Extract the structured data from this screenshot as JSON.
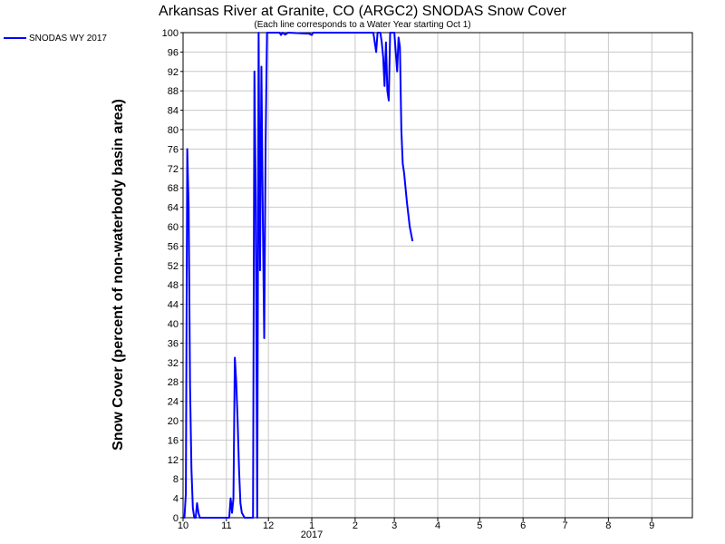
{
  "chart_data": {
    "type": "line",
    "title": "Arkansas River at Granite, CO (ARGC2) SNODAS Snow Cover",
    "subtitle": "(Each line corresponds to a Water Year starting Oct 1)",
    "ylabel": "Snow Cover (percent of non-waterbody basin area)",
    "xlabel": "",
    "ylim": [
      0,
      100
    ],
    "y_ticks": [
      0,
      4,
      8,
      12,
      16,
      20,
      24,
      28,
      32,
      36,
      40,
      44,
      48,
      52,
      56,
      60,
      64,
      68,
      72,
      76,
      80,
      84,
      88,
      92,
      96,
      100
    ],
    "x_range": [
      "2016-10-01",
      "2017-09-30"
    ],
    "x_ticks": [
      {
        "date": "2016-10-01",
        "label": "10"
      },
      {
        "date": "2016-11-01",
        "label": "11"
      },
      {
        "date": "2016-12-01",
        "label": "12"
      },
      {
        "date": "2017-01-01",
        "label": "1"
      },
      {
        "date": "2017-02-01",
        "label": "2"
      },
      {
        "date": "2017-03-01",
        "label": "3"
      },
      {
        "date": "2017-04-01",
        "label": "4"
      },
      {
        "date": "2017-05-01",
        "label": "5"
      },
      {
        "date": "2017-06-01",
        "label": "6"
      },
      {
        "date": "2017-07-01",
        "label": "7"
      },
      {
        "date": "2017-08-01",
        "label": "8"
      },
      {
        "date": "2017-09-01",
        "label": "9"
      }
    ],
    "year_label": {
      "date": "2017-01-01",
      "label": "2017"
    },
    "grid": true,
    "legend_position": "top-left",
    "series": [
      {
        "name": "SNODAS WY 2017",
        "color": "#0000ff",
        "points": [
          [
            "2016-10-01",
            0
          ],
          [
            "2016-10-02",
            0
          ],
          [
            "2016-10-03",
            5
          ],
          [
            "2016-10-04",
            76
          ],
          [
            "2016-10-05",
            64
          ],
          [
            "2016-10-06",
            27
          ],
          [
            "2016-10-07",
            10
          ],
          [
            "2016-10-08",
            2
          ],
          [
            "2016-10-09",
            0
          ],
          [
            "2016-10-10",
            0
          ],
          [
            "2016-10-11",
            3
          ],
          [
            "2016-10-12",
            1
          ],
          [
            "2016-10-13",
            0
          ],
          [
            "2016-10-20",
            0
          ],
          [
            "2016-11-01",
            0
          ],
          [
            "2016-11-03",
            0
          ],
          [
            "2016-11-04",
            4
          ],
          [
            "2016-11-05",
            1
          ],
          [
            "2016-11-06",
            4
          ],
          [
            "2016-11-07",
            33
          ],
          [
            "2016-11-08",
            28
          ],
          [
            "2016-11-09",
            20
          ],
          [
            "2016-11-10",
            10
          ],
          [
            "2016-11-11",
            3
          ],
          [
            "2016-11-12",
            1
          ],
          [
            "2016-11-14",
            0
          ],
          [
            "2016-11-20",
            0
          ],
          [
            "2016-11-21",
            92
          ],
          [
            "2016-11-22",
            65
          ],
          [
            "2016-11-23",
            0
          ],
          [
            "2016-11-24",
            100
          ],
          [
            "2016-11-25",
            51
          ],
          [
            "2016-11-26",
            93
          ],
          [
            "2016-11-27",
            62
          ],
          [
            "2016-11-28",
            37
          ],
          [
            "2016-11-29",
            77
          ],
          [
            "2016-11-30",
            100
          ],
          [
            "2016-12-05",
            100
          ],
          [
            "2016-12-09",
            100
          ],
          [
            "2016-12-10",
            99.5
          ],
          [
            "2016-12-11",
            100
          ],
          [
            "2016-12-13",
            99.6
          ],
          [
            "2016-12-15",
            100
          ],
          [
            "2016-12-30",
            99.8
          ],
          [
            "2017-01-01",
            99.5
          ],
          [
            "2017-01-02",
            100
          ],
          [
            "2017-01-30",
            100
          ],
          [
            "2017-02-14",
            100
          ],
          [
            "2017-02-15",
            98
          ],
          [
            "2017-02-16",
            96
          ],
          [
            "2017-02-17",
            100
          ],
          [
            "2017-02-19",
            100
          ],
          [
            "2017-02-20",
            98
          ],
          [
            "2017-02-21",
            95
          ],
          [
            "2017-02-22",
            89
          ],
          [
            "2017-02-23",
            98
          ],
          [
            "2017-02-24",
            88
          ],
          [
            "2017-02-25",
            86
          ],
          [
            "2017-02-26",
            100
          ],
          [
            "2017-03-01",
            100
          ],
          [
            "2017-03-02",
            96
          ],
          [
            "2017-03-03",
            92
          ],
          [
            "2017-03-04",
            99
          ],
          [
            "2017-03-05",
            97
          ],
          [
            "2017-03-06",
            80
          ],
          [
            "2017-03-07",
            73
          ],
          [
            "2017-03-08",
            71
          ],
          [
            "2017-03-10",
            65
          ],
          [
            "2017-03-12",
            60
          ],
          [
            "2017-03-14",
            57
          ]
        ]
      }
    ]
  }
}
